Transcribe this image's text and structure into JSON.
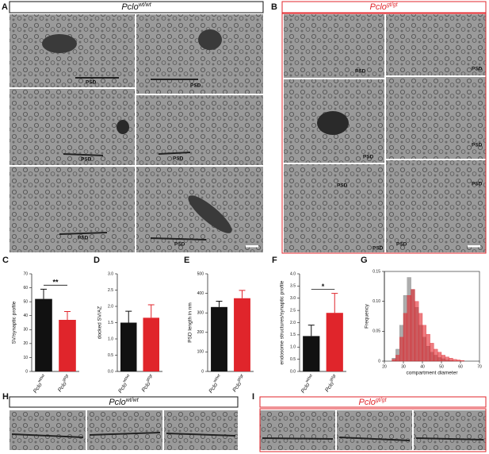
{
  "gene": "Pclo",
  "genotypes": [
    "wt/wt",
    "gt/gt"
  ],
  "psd_label": "PSD",
  "panel_letters": [
    "A",
    "B",
    "C",
    "D",
    "E",
    "F",
    "G",
    "H",
    "I"
  ],
  "chart_data": [
    {
      "type": "bar",
      "ylabel": "SV/synaptic profile",
      "categories": [
        "wt/wt",
        "gt/gt"
      ],
      "values": [
        52,
        37
      ],
      "errors": [
        7,
        6
      ],
      "colors": [
        "#111111",
        "#e0252b"
      ],
      "ylim": [
        0,
        70
      ],
      "yticks": [
        0,
        10,
        20,
        30,
        40,
        50,
        60,
        70
      ],
      "significance": "**"
    },
    {
      "type": "bar",
      "ylabel": "docked SV/AZ",
      "categories": [
        "wt/wt",
        "gt/gt"
      ],
      "values": [
        1.5,
        1.65
      ],
      "errors": [
        0.35,
        0.4
      ],
      "colors": [
        "#111111",
        "#e0252b"
      ],
      "ylim": [
        0,
        3
      ],
      "yticks": [
        {
          "value": 0,
          "label": "0.0"
        },
        0.5,
        {
          "value": 1,
          "label": "1.0"
        },
        1.5,
        {
          "value": 2,
          "label": "2.0"
        },
        2.5,
        {
          "value": 3,
          "label": "3.0"
        }
      ]
    },
    {
      "type": "bar",
      "ylabel": "PSD length in nm",
      "categories": [
        "wt/wt",
        "gt/gt"
      ],
      "values": [
        330,
        375
      ],
      "errors": [
        30,
        40
      ],
      "colors": [
        "#111111",
        "#e0252b"
      ],
      "ylim": [
        0,
        500
      ],
      "yticks": [
        0,
        100,
        200,
        300,
        400,
        500
      ]
    },
    {
      "type": "bar",
      "ylabel": "endosome structures/synaptic profile",
      "categories": [
        "wt/wt",
        "gt/gt"
      ],
      "values": [
        1.45,
        2.4
      ],
      "errors": [
        0.45,
        0.8
      ],
      "colors": [
        "#111111",
        "#e0252b"
      ],
      "ylim": [
        0,
        4
      ],
      "yticks": [
        {
          "value": 0,
          "label": "0.0"
        },
        0.5,
        {
          "value": 1,
          "label": "1.0"
        },
        1.5,
        {
          "value": 2,
          "label": "2.0"
        },
        2.5,
        {
          "value": 3,
          "label": "3.0"
        },
        3.5,
        {
          "value": 4,
          "label": "4.0"
        }
      ],
      "significance": "*"
    },
    {
      "type": "histogram",
      "xlabel": "compartment diameter",
      "ylabel": "Frequency",
      "bins": [
        20,
        22,
        24,
        26,
        28,
        30,
        32,
        34,
        36,
        38,
        40,
        42,
        44,
        46,
        48,
        50,
        52,
        54,
        56,
        58,
        60,
        62,
        64,
        66,
        68,
        70
      ],
      "series": [
        {
          "color": "#777777",
          "values": [
            0,
            0,
            0.005,
            0.02,
            0.06,
            0.11,
            0.14,
            0.12,
            0.09,
            0.06,
            0.04,
            0.025,
            0.015,
            0.01,
            0.006,
            0.004,
            0.002,
            0.001,
            0,
            0,
            0,
            0,
            0,
            0,
            0
          ]
        },
        {
          "color": "#e0252b",
          "values": [
            0,
            0,
            0.003,
            0.01,
            0.04,
            0.08,
            0.11,
            0.12,
            0.1,
            0.08,
            0.06,
            0.045,
            0.03,
            0.02,
            0.015,
            0.01,
            0.007,
            0.005,
            0.003,
            0.002,
            0.001,
            0,
            0,
            0,
            0
          ]
        }
      ],
      "xlim": [
        20,
        70
      ],
      "xticks": [
        20,
        30,
        40,
        50,
        60,
        70
      ],
      "ylim": [
        0,
        0.15
      ],
      "yticks": [
        0,
        0.05,
        {
          "value": 0.1,
          "label": "0.10"
        },
        0.15
      ]
    }
  ]
}
